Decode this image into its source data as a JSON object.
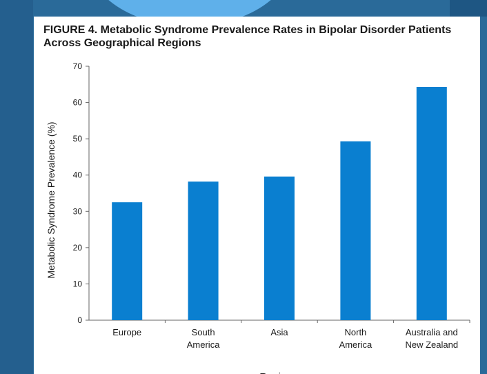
{
  "figure": {
    "title": "FIGURE 4. Metabolic Syndrome Prevalence Rates in Bipolar Disorder Patients Across Geographical Regions"
  },
  "colors": {
    "bar": "#0a7fd0",
    "axis": "#666666",
    "text": "#1a1a1a",
    "background_blue": "#2a6a99",
    "light_blue": "#5fb0ea"
  },
  "chart_data": {
    "type": "bar",
    "title": "FIGURE 4. Metabolic Syndrome Prevalence Rates in Bipolar Disorder Patients Across Geographical Regions",
    "xlabel": "Region",
    "ylabel": "Metabolic Syndrome Prevalence (%)",
    "categories": [
      [
        "Europe"
      ],
      [
        "South",
        "America"
      ],
      [
        "Asia"
      ],
      [
        "North",
        "America"
      ],
      [
        "Australia and",
        "New Zealand"
      ]
    ],
    "values": [
      32.5,
      38.2,
      39.6,
      49.3,
      64.3
    ],
    "ylim": [
      0,
      70
    ],
    "yticks": [
      0,
      10,
      20,
      30,
      40,
      50,
      60,
      70
    ],
    "grid": false,
    "legend": "none"
  }
}
